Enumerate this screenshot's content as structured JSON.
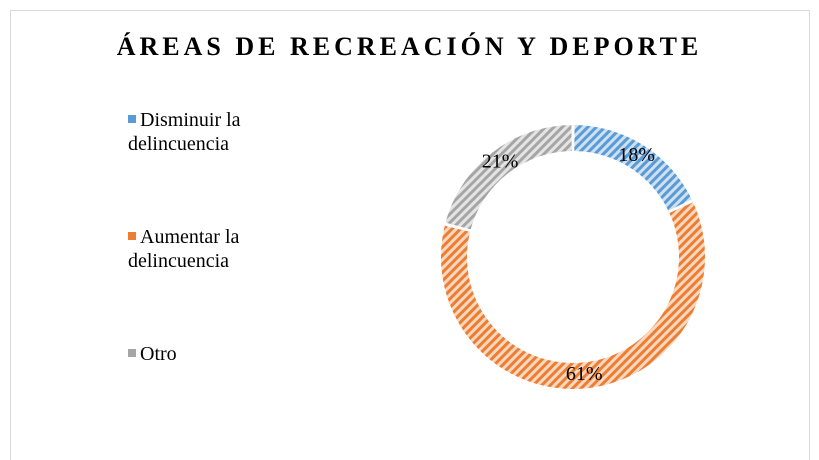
{
  "chart_data": {
    "type": "donut",
    "title": "ÁREAS DE RECREACIÓN Y DEPORTE",
    "categories": [
      "Disminuir la delincuencia",
      "Aumentar la delincuencia",
      "Otro"
    ],
    "values": [
      18,
      61,
      21
    ],
    "value_labels": [
      "18%",
      "61%",
      "21%"
    ],
    "colors": [
      "#5b9bd5",
      "#ed7d31",
      "#a5a5a5"
    ],
    "legend": "left"
  }
}
